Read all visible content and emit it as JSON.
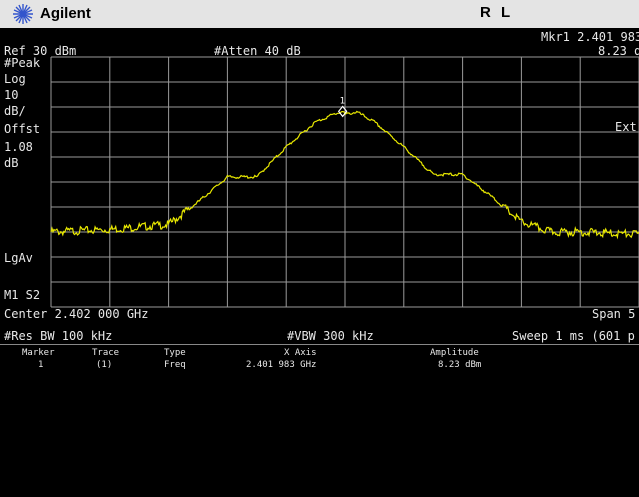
{
  "title_bar": {
    "brand": "Agilent",
    "mode": "R L",
    "logo_icon": "agilent-spark-icon"
  },
  "header": {
    "marker_readout": "Mkr1  2.401 983",
    "marker_amplitude": "8.23 d",
    "ref_level": "Ref 30 dBm",
    "attenuation": "#Atten 40 dB",
    "ext_label": "Ext"
  },
  "left_panel": {
    "detector": "#Peak",
    "scale_type": "Log",
    "scale_value": "10",
    "scale_unit": "dB/",
    "offset_label": "Offst",
    "offset_value": "1.08",
    "offset_unit": "dB",
    "avg_label": "LgAv",
    "marker_mode": "M1  S2"
  },
  "footer": {
    "center": "Center 2.402 000 GHz",
    "span": "Span 5",
    "res_bw": "#Res BW 100 kHz",
    "vbw": "#VBW 300 kHz",
    "sweep": "Sweep 1 ms (601 p"
  },
  "marker_table": {
    "headers": [
      "Marker",
      "Trace",
      "Type",
      "X Axis",
      "Amplitude"
    ],
    "rows": [
      [
        "1",
        "(1)",
        "Freq",
        "2.401 983 GHz",
        "8.23 dBm"
      ]
    ]
  },
  "marker_label": "1",
  "colors": {
    "trace": "#e8e800",
    "grid": "#9a9a9a",
    "background": "#000000",
    "title_bar": "#e4e4e4"
  },
  "chart_data": {
    "type": "line",
    "title": "",
    "xlabel": "",
    "ylabel": "",
    "x_range_ghz": [
      2.3995,
      2.4045
    ],
    "ylim_dbm": [
      -70,
      30
    ],
    "grid": true,
    "series": [
      {
        "x": [
          2.3995,
          2.4,
          2.4005,
          2.40075,
          2.401,
          2.40125,
          2.4015,
          2.40175,
          2.4019,
          2.40198,
          2.402,
          2.4021,
          2.40225,
          2.4025,
          2.40275,
          2.403,
          2.40325,
          2.4035,
          2.40375,
          2.404,
          2.4045
        ],
        "values": [
          -40,
          -39,
          -37,
          -28,
          -18,
          -18,
          -6,
          4,
          7,
          8.2,
          7,
          8,
          4,
          -6,
          -17,
          -17,
          -26,
          -36,
          -40,
          -40,
          -41
        ]
      }
    ]
  }
}
